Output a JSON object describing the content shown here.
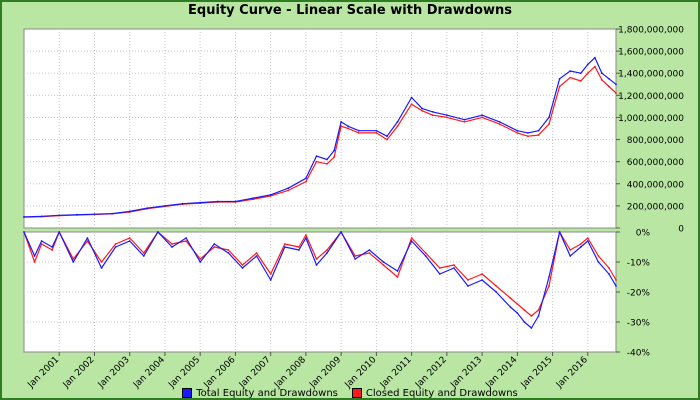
{
  "title": "Equity Curve - Linear Scale with Drawdowns",
  "colors": {
    "total": "#1a1aff",
    "closed": "#ff1a1a",
    "frame_bg": "#b9e6a3",
    "frame_border": "#2f7d22"
  },
  "legend": [
    {
      "label": "Total Equity and Drawdowns",
      "color": "#1a1aff"
    },
    {
      "label": "Closed Equity and Drawdowns",
      "color": "#ff1a1a"
    }
  ],
  "chart_data": [
    {
      "type": "line",
      "panel": "equity",
      "ylim": [
        0,
        1800000000
      ],
      "y_ticks": [
        0,
        200000000,
        400000000,
        600000000,
        800000000,
        1000000000,
        1200000000,
        1400000000,
        1600000000,
        1800000000
      ],
      "y_tick_labels": [
        "0",
        "200,000,000",
        "400,000,000",
        "600,000,000",
        "800,000,000",
        "1,000,000,000",
        "1,200,000,000",
        "1,400,000,000",
        "1,600,000,000",
        "1,800,000,000"
      ],
      "xlim": [
        2000.0,
        2016.8
      ],
      "series": [
        {
          "name": "Total Equity and Drawdowns",
          "x": [
            2000.0,
            2000.5,
            2001.0,
            2001.5,
            2002.0,
            2002.5,
            2003.0,
            2003.5,
            2004.0,
            2004.5,
            2005.0,
            2005.5,
            2006.0,
            2006.5,
            2007.0,
            2007.5,
            2008.0,
            2008.3,
            2008.6,
            2008.8,
            2009.0,
            2009.2,
            2009.5,
            2010.0,
            2010.3,
            2010.6,
            2011.0,
            2011.3,
            2011.6,
            2012.0,
            2012.5,
            2013.0,
            2013.5,
            2014.0,
            2014.3,
            2014.6,
            2014.9,
            2015.2,
            2015.5,
            2015.8,
            2016.0,
            2016.2,
            2016.4,
            2016.6,
            2016.8
          ],
          "y": [
            100000000,
            105000000,
            115000000,
            120000000,
            125000000,
            130000000,
            150000000,
            180000000,
            200000000,
            220000000,
            230000000,
            240000000,
            240000000,
            270000000,
            300000000,
            360000000,
            450000000,
            650000000,
            620000000,
            700000000,
            960000000,
            920000000,
            880000000,
            880000000,
            830000000,
            960000000,
            1180000000,
            1080000000,
            1050000000,
            1020000000,
            980000000,
            1020000000,
            960000000,
            880000000,
            860000000,
            880000000,
            1000000000,
            1350000000,
            1420000000,
            1400000000,
            1480000000,
            1540000000,
            1400000000,
            1350000000,
            1300000000
          ]
        },
        {
          "name": "Closed Equity and Drawdowns",
          "x": [
            2000.0,
            2000.5,
            2001.0,
            2001.5,
            2002.0,
            2002.5,
            2003.0,
            2003.5,
            2004.0,
            2004.5,
            2005.0,
            2005.5,
            2006.0,
            2006.5,
            2007.0,
            2007.5,
            2008.0,
            2008.3,
            2008.6,
            2008.8,
            2009.0,
            2009.2,
            2009.5,
            2010.0,
            2010.3,
            2010.6,
            2011.0,
            2011.3,
            2011.6,
            2012.0,
            2012.5,
            2013.0,
            2013.5,
            2014.0,
            2014.3,
            2014.6,
            2014.9,
            2015.2,
            2015.5,
            2015.8,
            2016.0,
            2016.2,
            2016.4,
            2016.6,
            2016.8
          ],
          "y": [
            98000000,
            103000000,
            112000000,
            118000000,
            122000000,
            128000000,
            145000000,
            175000000,
            195000000,
            215000000,
            225000000,
            235000000,
            235000000,
            260000000,
            290000000,
            340000000,
            420000000,
            600000000,
            580000000,
            640000000,
            920000000,
            900000000,
            860000000,
            860000000,
            800000000,
            920000000,
            1120000000,
            1060000000,
            1020000000,
            1000000000,
            960000000,
            1000000000,
            940000000,
            860000000,
            830000000,
            840000000,
            940000000,
            1280000000,
            1360000000,
            1330000000,
            1400000000,
            1460000000,
            1340000000,
            1280000000,
            1220000000
          ]
        }
      ]
    },
    {
      "type": "line",
      "panel": "drawdown",
      "ylim": [
        -40,
        0
      ],
      "y_ticks": [
        0,
        -10,
        -20,
        -30,
        -40
      ],
      "y_tick_labels": [
        "0%",
        "-10%",
        "-20%",
        "-30%",
        "-40%"
      ],
      "xlim": [
        2000.0,
        2016.8
      ],
      "x_ticks": [
        2001.0,
        2002.0,
        2003.0,
        2004.0,
        2005.0,
        2006.0,
        2007.0,
        2008.0,
        2009.0,
        2010.0,
        2011.0,
        2012.0,
        2013.0,
        2014.0,
        2015.0,
        2016.0
      ],
      "x_tick_labels": [
        "Jan 2001",
        "Jan 2002",
        "Jan 2003",
        "Jan 2004",
        "Jan 2005",
        "Jan 2006",
        "Jan 2007",
        "Jan 2008",
        "Jan 2009",
        "Jan 2010",
        "Jan 2011",
        "Jan 2012",
        "Jan 2013",
        "Jan 2014",
        "Jan 2015",
        "Jan 2016"
      ],
      "series": [
        {
          "name": "Total Equity and Drawdowns",
          "x": [
            2000.0,
            2000.3,
            2000.5,
            2000.8,
            2001.0,
            2001.4,
            2001.8,
            2002.2,
            2002.6,
            2003.0,
            2003.4,
            2003.8,
            2004.2,
            2004.6,
            2005.0,
            2005.4,
            2005.8,
            2006.2,
            2006.6,
            2007.0,
            2007.4,
            2007.8,
            2008.0,
            2008.3,
            2008.6,
            2009.0,
            2009.4,
            2009.8,
            2010.2,
            2010.6,
            2011.0,
            2011.4,
            2011.8,
            2012.2,
            2012.6,
            2013.0,
            2013.4,
            2013.8,
            2014.0,
            2014.2,
            2014.4,
            2014.6,
            2014.9,
            2015.2,
            2015.5,
            2015.8,
            2016.0,
            2016.3,
            2016.6,
            2016.8
          ],
          "y": [
            0,
            -8,
            -3,
            -5,
            0,
            -10,
            -2,
            -12,
            -5,
            -3,
            -8,
            0,
            -5,
            -2,
            -10,
            -4,
            -7,
            -12,
            -8,
            -16,
            -5,
            -6,
            -2,
            -11,
            -7,
            0,
            -9,
            -6,
            -10,
            -13,
            -3,
            -8,
            -14,
            -12,
            -18,
            -16,
            -20,
            -25,
            -27,
            -30,
            -32,
            -28,
            -15,
            0,
            -8,
            -5,
            -3,
            -10,
            -14,
            -18
          ]
        },
        {
          "name": "Closed Equity and Drawdowns",
          "x": [
            2000.0,
            2000.3,
            2000.5,
            2000.8,
            2001.0,
            2001.4,
            2001.8,
            2002.2,
            2002.6,
            2003.0,
            2003.4,
            2003.8,
            2004.2,
            2004.6,
            2005.0,
            2005.4,
            2005.8,
            2006.2,
            2006.6,
            2007.0,
            2007.4,
            2007.8,
            2008.0,
            2008.3,
            2008.6,
            2009.0,
            2009.4,
            2009.8,
            2010.2,
            2010.6,
            2011.0,
            2011.4,
            2011.8,
            2012.2,
            2012.6,
            2013.0,
            2013.4,
            2013.8,
            2014.0,
            2014.2,
            2014.4,
            2014.6,
            2014.9,
            2015.2,
            2015.5,
            2015.8,
            2016.0,
            2016.3,
            2016.6,
            2016.8
          ],
          "y": [
            0,
            -10,
            -4,
            -6,
            0,
            -9,
            -3,
            -10,
            -4,
            -2,
            -7,
            0,
            -4,
            -3,
            -9,
            -5,
            -6,
            -11,
            -7,
            -14,
            -4,
            -5,
            -1,
            -9,
            -6,
            0,
            -8,
            -7,
            -11,
            -15,
            -2,
            -7,
            -12,
            -11,
            -16,
            -14,
            -18,
            -22,
            -24,
            -26,
            -28,
            -26,
            -18,
            0,
            -6,
            -4,
            -2,
            -8,
            -12,
            -16
          ]
        }
      ]
    }
  ]
}
